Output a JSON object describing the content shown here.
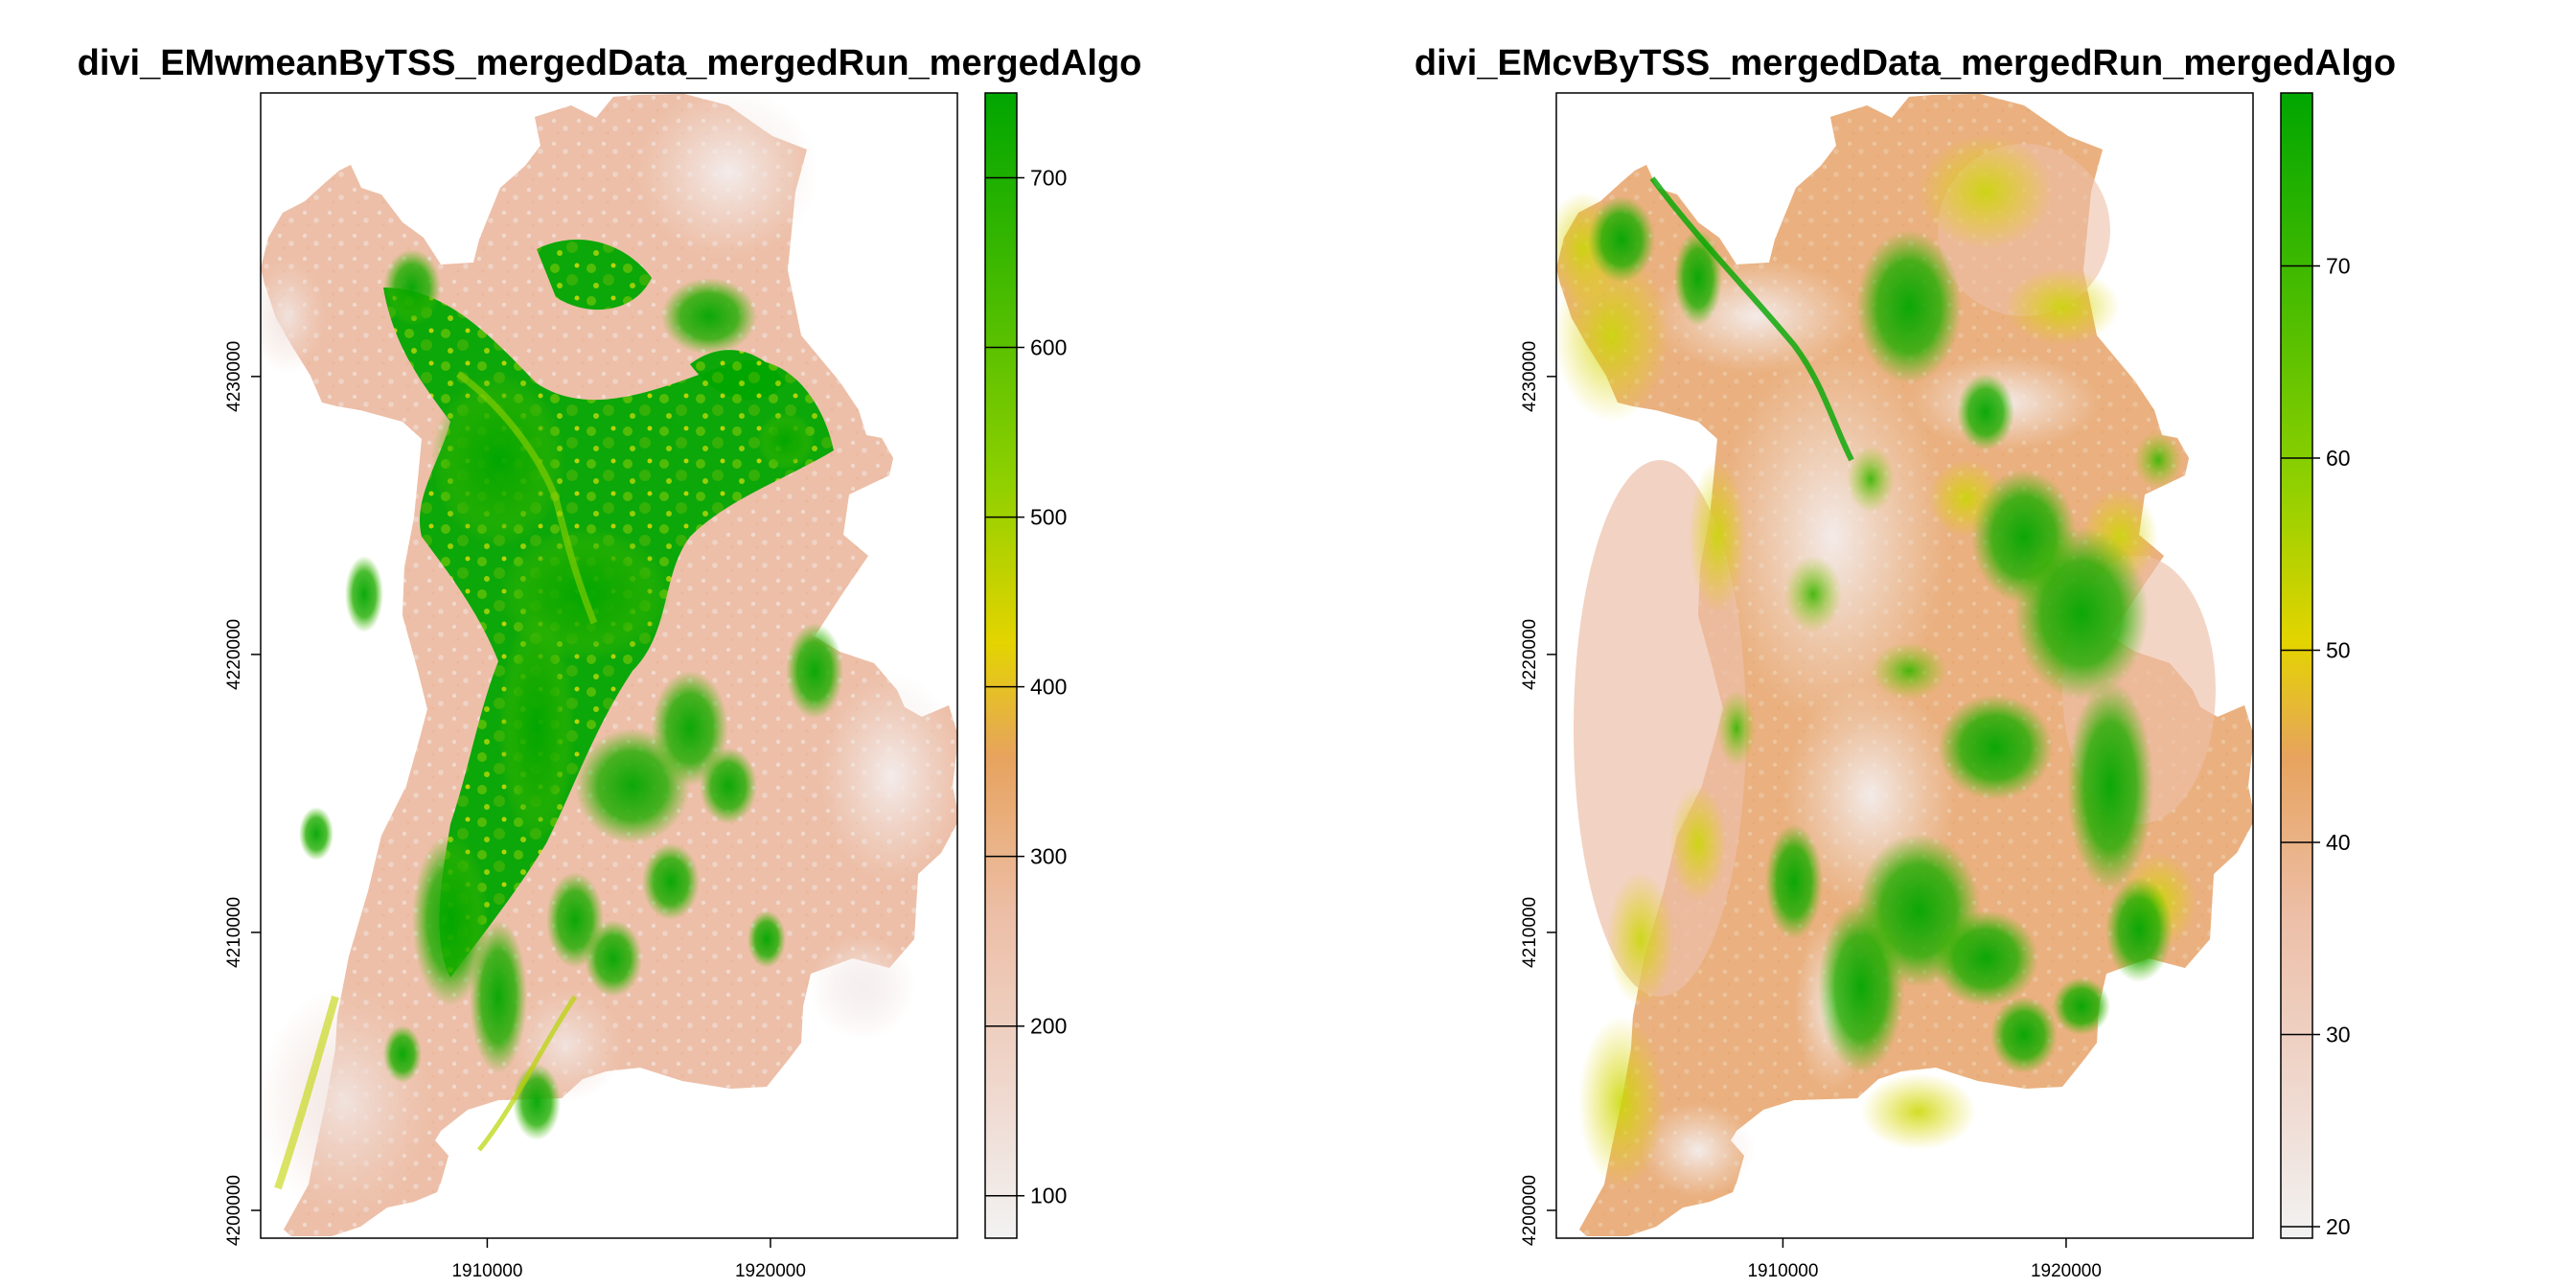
{
  "chart_data": [
    {
      "type": "heatmap",
      "title": "divi_EMwmeanByTSS_mergedData_mergedRun_mergedAlgo",
      "x_ticks": [
        1910000,
        1920000
      ],
      "y_ticks": [
        4200000,
        4210000,
        4220000,
        4230000
      ],
      "xlim": [
        1902000,
        1926600
      ],
      "ylim": [
        4199000,
        4240200
      ],
      "legend": {
        "placement": "right",
        "range": [
          75,
          750
        ],
        "ticks": [
          100,
          200,
          300,
          400,
          500,
          600,
          700
        ],
        "colors": [
          "#f2f2f2",
          "#edbfa8",
          "#e7a35e",
          "#e4d400",
          "#8fd000",
          "#49bc00",
          "#00a600"
        ]
      }
    },
    {
      "type": "heatmap",
      "title": "divi_EMcvByTSS_mergedData_mergedRun_mergedAlgo",
      "x_ticks": [
        1910000,
        1920000
      ],
      "y_ticks": [
        4200000,
        4210000,
        4220000,
        4230000
      ],
      "xlim": [
        1902000,
        1926600
      ],
      "ylim": [
        4199000,
        4240200
      ],
      "legend": {
        "placement": "right",
        "range": [
          19.4,
          79
        ],
        "ticks": [
          20,
          30,
          40,
          50,
          60,
          70
        ],
        "colors": [
          "#f2f2f2",
          "#edbfa8",
          "#e7a35e",
          "#e4d400",
          "#8fd000",
          "#49bc00",
          "#00a600"
        ]
      }
    }
  ],
  "colors": {
    "background": "#ffffff",
    "axis": "#000000"
  }
}
